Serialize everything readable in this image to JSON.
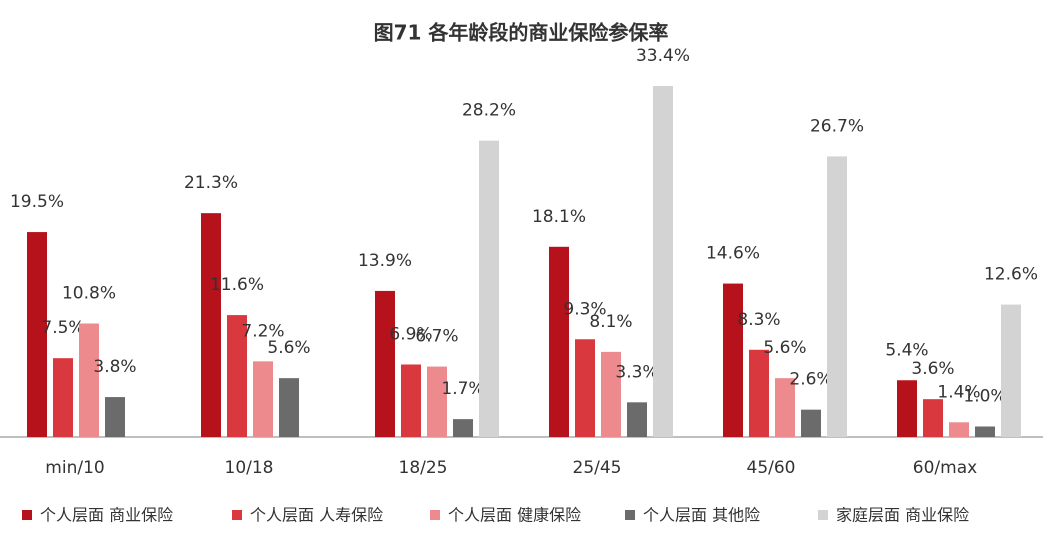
{
  "chart_data": {
    "type": "bar",
    "title": "图71 各年龄段的商业保险参保率",
    "categories": [
      "min/10",
      "10/18",
      "18/25",
      "25/45",
      "45/60",
      "60/max"
    ],
    "series": [
      {
        "name": "个人层面 商业保险",
        "color": "#b5121b",
        "values": [
          19.5,
          21.3,
          13.9,
          18.1,
          14.6,
          5.4
        ],
        "value_labels": [
          "19.5%",
          "21.3%",
          "13.9%",
          "18.1%",
          "14.6%",
          "5.4%"
        ]
      },
      {
        "name": "个人层面 人寿保险",
        "color": "#d9383f",
        "values": [
          7.5,
          11.6,
          6.9,
          9.3,
          8.3,
          3.6
        ],
        "value_labels": [
          "7.5%",
          "11.6%",
          "6.9%",
          "9.3%",
          "8.3%",
          "3.6%"
        ]
      },
      {
        "name": "个人层面 健康保险",
        "color": "#ec8a8e",
        "values": [
          10.8,
          7.2,
          6.7,
          8.1,
          5.6,
          1.4
        ],
        "value_labels": [
          "10.8%",
          "7.2%",
          "6.7%",
          "8.1%",
          "5.6%",
          "1.4%"
        ]
      },
      {
        "name": "个人层面 其他险",
        "color": "#6b6b6b",
        "values": [
          3.8,
          5.6,
          1.7,
          3.3,
          2.6,
          1.0
        ],
        "value_labels": [
          "3.8%",
          "5.6%",
          "1.7%",
          "3.3%",
          "2.6%",
          "1.0%"
        ]
      },
      {
        "name": "家庭层面 商业保险",
        "color": "#d3d3d3",
        "values": [
          null,
          null,
          28.2,
          33.4,
          26.7,
          12.6
        ],
        "value_labels": [
          null,
          null,
          "28.2%",
          "33.4%",
          "26.7%",
          "12.6%"
        ]
      }
    ]
  }
}
